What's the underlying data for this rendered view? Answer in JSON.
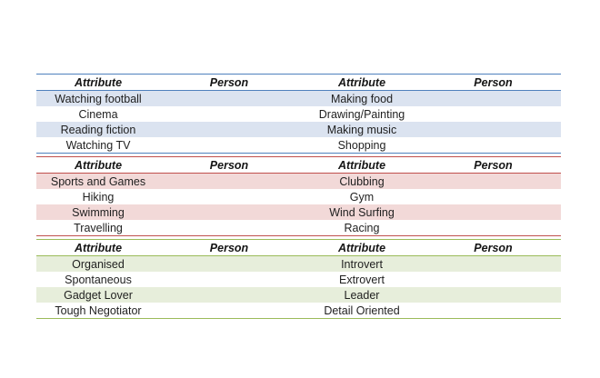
{
  "sections": [
    {
      "headers": [
        "Attribute",
        "Person",
        "Attribute",
        "Person"
      ],
      "rows": [
        [
          "Watching football",
          "",
          "Making food",
          ""
        ],
        [
          "Cinema",
          "",
          "Drawing/Painting",
          ""
        ],
        [
          "Reading fiction",
          "",
          "Making music",
          ""
        ],
        [
          "Watching TV",
          "",
          "Shopping",
          ""
        ]
      ],
      "accent": "#4f81bd",
      "band": "#dbe3f0"
    },
    {
      "headers": [
        "Attribute",
        "Person",
        "Attribute",
        "Person"
      ],
      "rows": [
        [
          "Sports and Games",
          "",
          "Clubbing",
          ""
        ],
        [
          "Hiking",
          "",
          "Gym",
          ""
        ],
        [
          "Swimming",
          "",
          "Wind Surfing",
          ""
        ],
        [
          "Travelling",
          "",
          "Racing",
          ""
        ]
      ],
      "accent": "#c0504d",
      "band": "#f2d9d8"
    },
    {
      "headers": [
        "Attribute",
        "Person",
        "Attribute",
        "Person"
      ],
      "rows": [
        [
          "Organised",
          "",
          "Introvert",
          ""
        ],
        [
          "Spontaneous",
          "",
          "Extrovert",
          ""
        ],
        [
          "Gadget Lover",
          "",
          "Leader",
          ""
        ],
        [
          "Tough Negotiator",
          "",
          "Detail Oriented",
          ""
        ]
      ],
      "accent": "#9bbb59",
      "band": "#e7eedb"
    }
  ]
}
